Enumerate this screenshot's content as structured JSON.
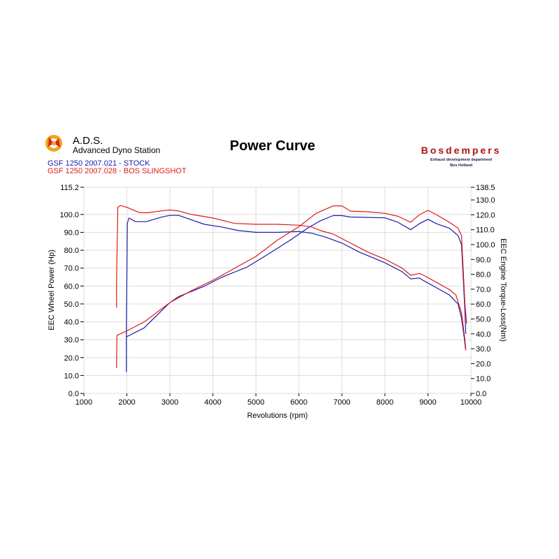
{
  "header": {
    "brand": "A.D.S.",
    "brand_subtitle": "Advanced Dyno Station",
    "partner_name": "Bosdempers",
    "partner_subtitle": "Exhaust development department",
    "partner_location": "Bos Holland"
  },
  "colors": {
    "series_a": "#1a1aaa",
    "series_b": "#dd1a1a",
    "partner": "#b01010",
    "grid": "#dcdcdc"
  },
  "chart_data": {
    "type": "line",
    "title": "Power Curve",
    "xlabel": "Revolutions (rpm)",
    "ylabel_left": "EEC Wheel Power (Hp)",
    "ylabel_right": "EEC Engine Torque-Loss(Nm)",
    "xlim": [
      1000,
      10000
    ],
    "ylim_left": [
      0,
      115.2
    ],
    "ylim_right": [
      0,
      138.5
    ],
    "x_ticks": [
      "1000",
      "2000",
      "3000",
      "4000",
      "5000",
      "6000",
      "7000",
      "8000",
      "9000",
      "10000"
    ],
    "y_ticks_left": [
      "0.0",
      "10.0",
      "20.0",
      "30.0",
      "40.0",
      "50.0",
      "60.0",
      "70.0",
      "80.0",
      "90.0",
      "100.0",
      "115.2"
    ],
    "y_ticks_right": [
      "0.0",
      "10.0",
      "20.0",
      "30.0",
      "40.0",
      "50.0",
      "60.0",
      "70.0",
      "80.0",
      "90.0",
      "100.0",
      "110.0",
      "120.0",
      "130.0",
      "138.5"
    ],
    "grid": true,
    "legend_position": "top-left",
    "series": [
      {
        "name": "GSF 1250 2007.021 - STOCK",
        "color_key": "series_a",
        "power": [
          [
            1990,
            12
          ],
          [
            1990,
            35
          ],
          [
            2010,
            95
          ],
          [
            2050,
            98
          ],
          [
            2200,
            96
          ],
          [
            2450,
            96
          ],
          [
            2800,
            98.5
          ],
          [
            3000,
            99.5
          ],
          [
            3200,
            99.5
          ],
          [
            3500,
            97
          ],
          [
            3800,
            94.5
          ],
          [
            4200,
            93
          ],
          [
            4600,
            91
          ],
          [
            5000,
            90
          ],
          [
            5500,
            90
          ],
          [
            6000,
            90.5
          ],
          [
            6300,
            89.5
          ],
          [
            6600,
            87.5
          ],
          [
            7000,
            84
          ],
          [
            7400,
            79
          ],
          [
            8000,
            73
          ],
          [
            8400,
            68
          ],
          [
            8600,
            64
          ],
          [
            8800,
            64.5
          ],
          [
            8900,
            63
          ],
          [
            9200,
            59
          ],
          [
            9500,
            55
          ],
          [
            9700,
            50
          ],
          [
            9780,
            42
          ],
          [
            9850,
            30
          ],
          [
            9870,
            25
          ]
        ],
        "torque": [
          [
            1990,
            38
          ],
          [
            2400,
            44
          ],
          [
            3000,
            61
          ],
          [
            3200,
            65
          ],
          [
            3800,
            72
          ],
          [
            4200,
            78
          ],
          [
            4800,
            85
          ],
          [
            5200,
            92
          ],
          [
            5800,
            103
          ],
          [
            6200,
            111
          ],
          [
            6500,
            116
          ],
          [
            6800,
            119.5
          ],
          [
            7000,
            119.5
          ],
          [
            7200,
            118.5
          ],
          [
            8000,
            118
          ],
          [
            8300,
            115
          ],
          [
            8600,
            110
          ],
          [
            8800,
            114
          ],
          [
            9000,
            117
          ],
          [
            9200,
            114
          ],
          [
            9500,
            111
          ],
          [
            9700,
            106
          ],
          [
            9780,
            100
          ],
          [
            9860,
            55
          ],
          [
            9880,
            40
          ]
        ]
      },
      {
        "name": "GSF 1250 2007.028 - BOS SLINGSHOT",
        "color_key": "series_b",
        "power": [
          [
            1760,
            48
          ],
          [
            1760,
            62
          ],
          [
            1790,
            104
          ],
          [
            1850,
            105
          ],
          [
            2000,
            104
          ],
          [
            2300,
            101
          ],
          [
            2500,
            101
          ],
          [
            2800,
            102
          ],
          [
            3000,
            102.5
          ],
          [
            3200,
            102
          ],
          [
            3500,
            100
          ],
          [
            4000,
            98
          ],
          [
            4500,
            95
          ],
          [
            5000,
            94.5
          ],
          [
            5500,
            94.5
          ],
          [
            6000,
            94
          ],
          [
            6300,
            93
          ],
          [
            6500,
            91
          ],
          [
            6800,
            89
          ],
          [
            7200,
            84
          ],
          [
            7600,
            79
          ],
          [
            8000,
            75
          ],
          [
            8400,
            70
          ],
          [
            8600,
            66
          ],
          [
            8800,
            67
          ],
          [
            8900,
            66
          ],
          [
            9200,
            62
          ],
          [
            9500,
            58
          ],
          [
            9650,
            55
          ],
          [
            9780,
            45
          ],
          [
            9860,
            30
          ],
          [
            9880,
            24
          ]
        ],
        "torque": [
          [
            1760,
            17
          ],
          [
            1770,
            39
          ],
          [
            2000,
            42
          ],
          [
            2400,
            48
          ],
          [
            3000,
            61
          ],
          [
            3500,
            69
          ],
          [
            4000,
            76
          ],
          [
            4500,
            84
          ],
          [
            5000,
            92
          ],
          [
            5500,
            103
          ],
          [
            6000,
            112
          ],
          [
            6400,
            121
          ],
          [
            6800,
            126
          ],
          [
            7000,
            126
          ],
          [
            7200,
            122.5
          ],
          [
            7600,
            122
          ],
          [
            8000,
            121
          ],
          [
            8300,
            119
          ],
          [
            8600,
            115
          ],
          [
            8800,
            120
          ],
          [
            9000,
            123
          ],
          [
            9200,
            120
          ],
          [
            9500,
            115
          ],
          [
            9700,
            111
          ],
          [
            9780,
            106
          ],
          [
            9860,
            60
          ],
          [
            9900,
            47
          ]
        ]
      }
    ]
  }
}
